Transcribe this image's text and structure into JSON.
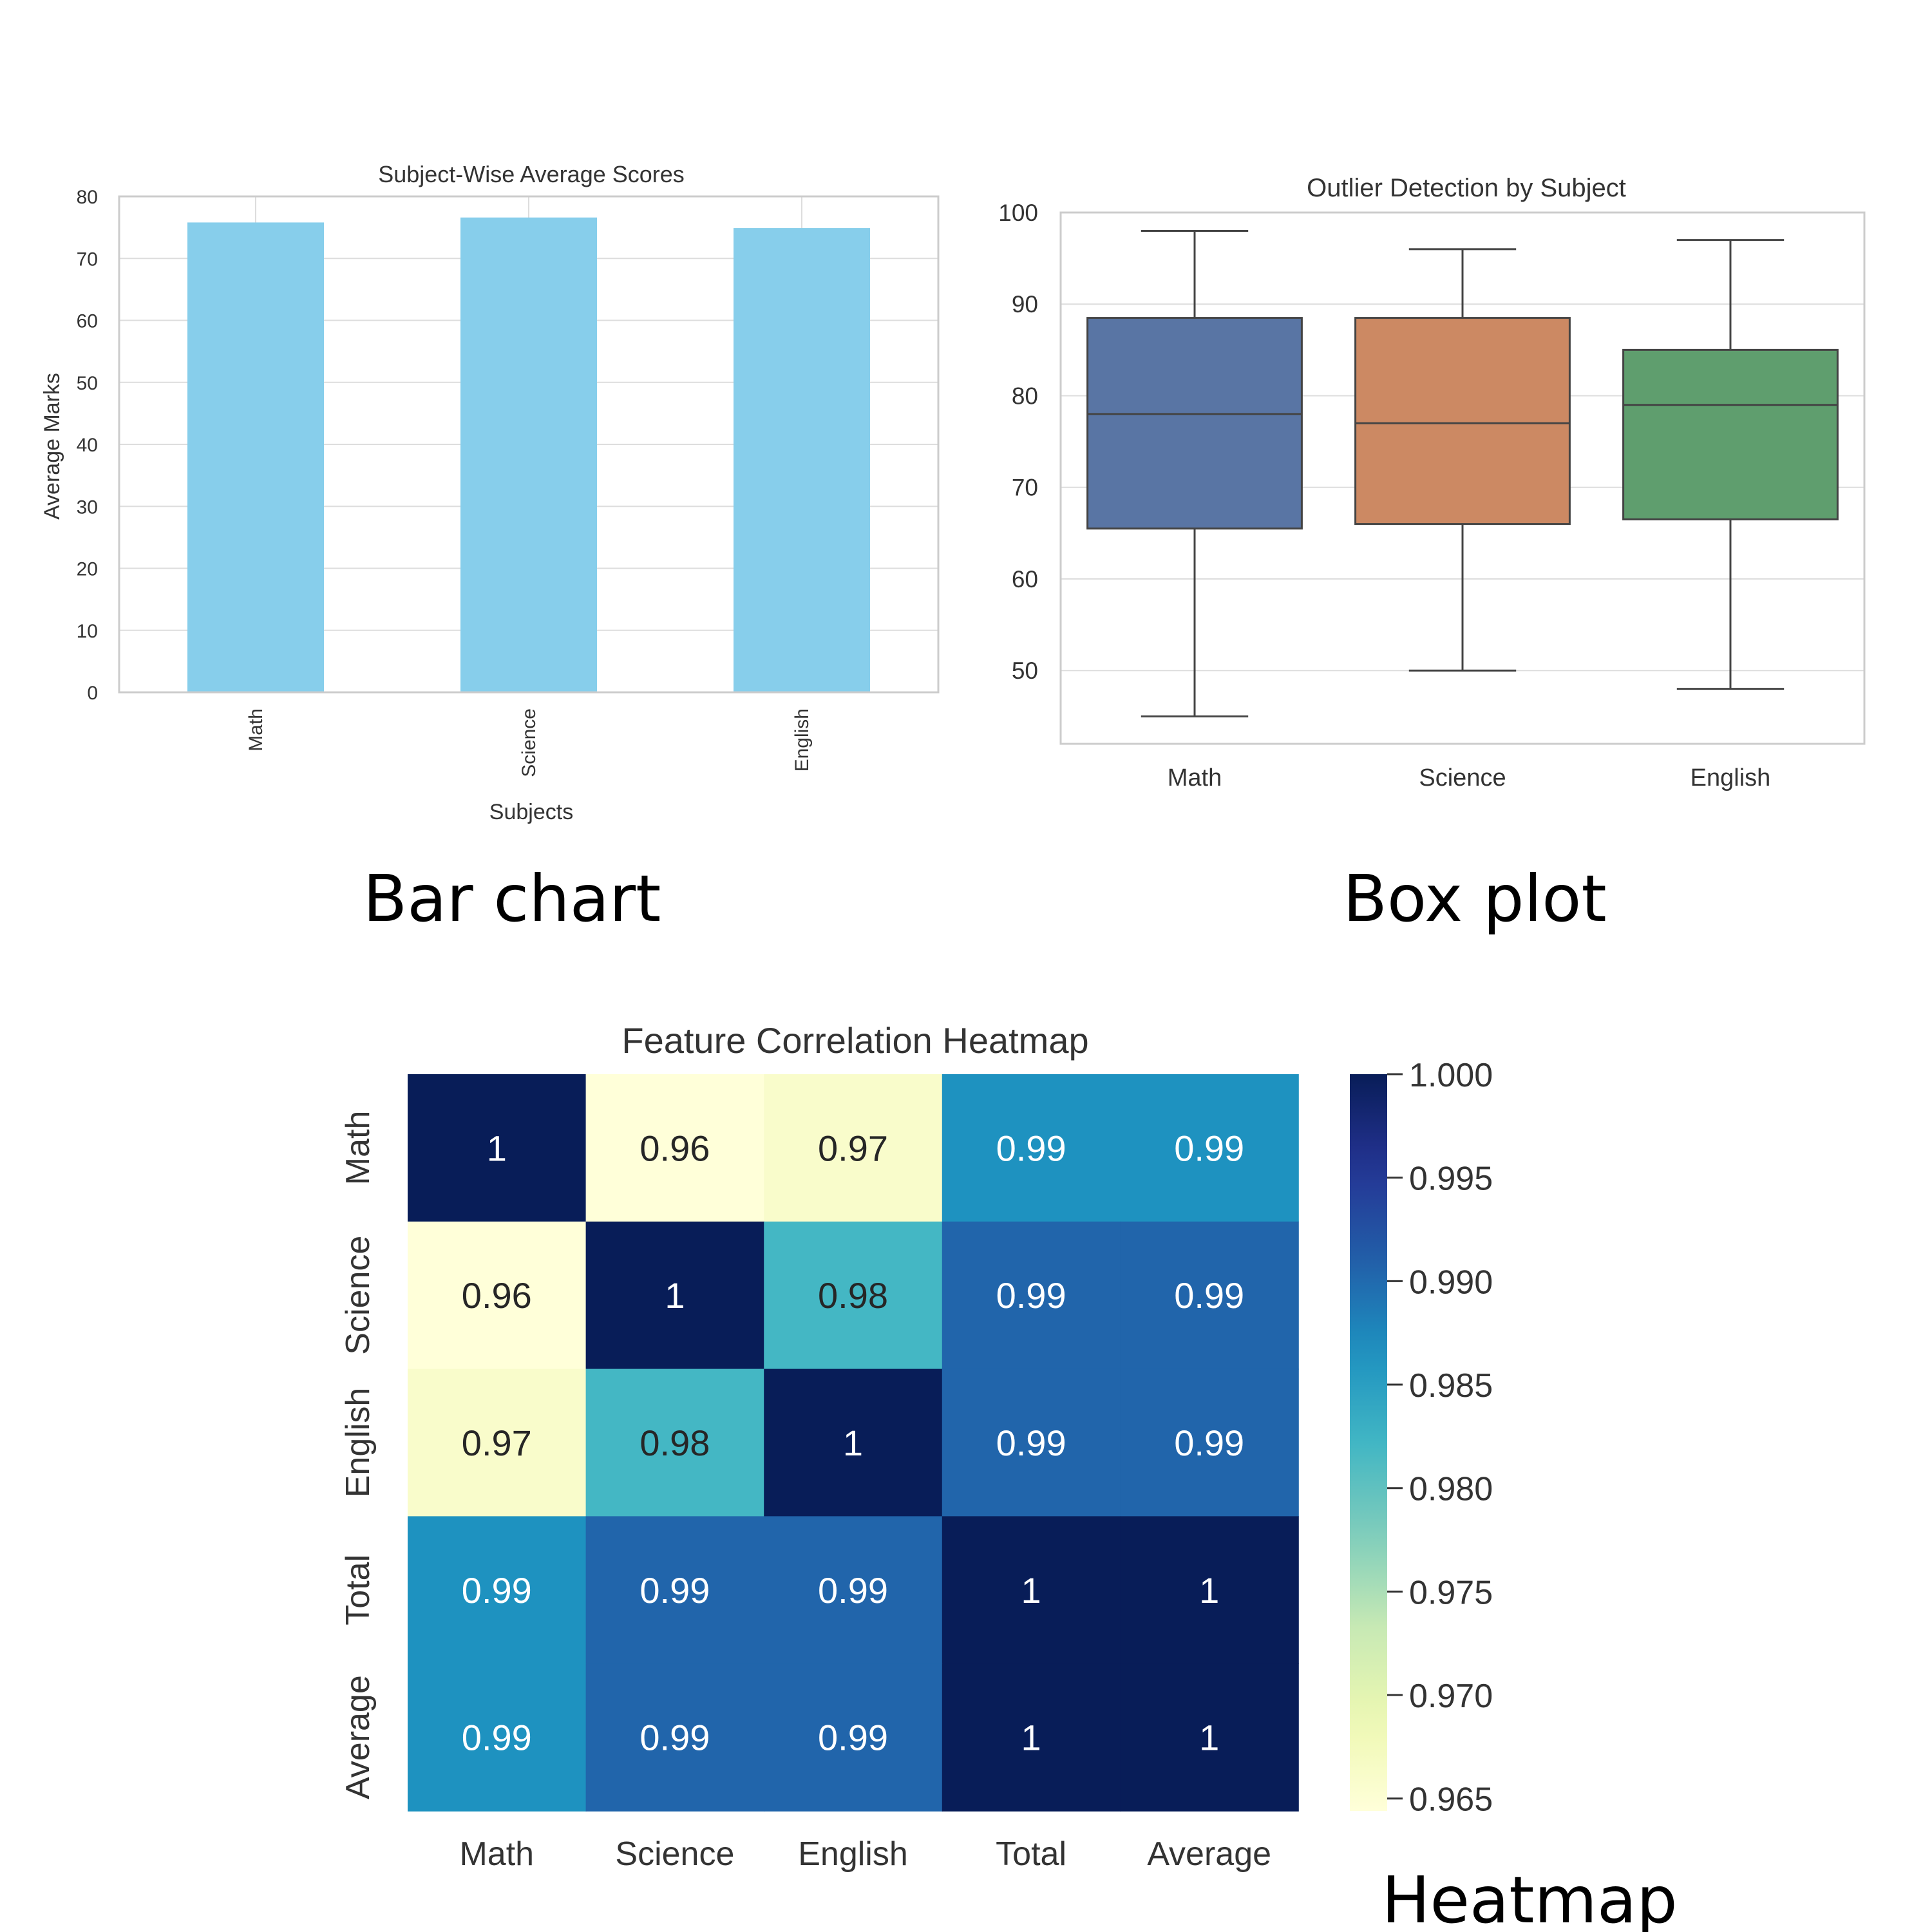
{
  "captions": {
    "bar": "Bar chart",
    "box": "Box plot",
    "heat": "Heatmap"
  },
  "chart_data": [
    {
      "type": "bar",
      "title": "Subject-Wise Average Scores",
      "xlabel": "Subjects",
      "ylabel": "Average Marks",
      "categories": [
        "Math",
        "Science",
        "English"
      ],
      "values": [
        75.8,
        76.6,
        74.9
      ],
      "ylim": [
        0,
        80
      ],
      "yticks": [
        0,
        10,
        20,
        30,
        40,
        50,
        60,
        70,
        80
      ],
      "color": "#87CEEB",
      "grid": true
    },
    {
      "type": "box",
      "title": "Outlier Detection by Subject",
      "categories": [
        "Math",
        "Science",
        "English"
      ],
      "boxes": [
        {
          "min": 45,
          "q1": 65.5,
          "median": 78,
          "q3": 88.5,
          "max": 98,
          "color": "#5975A4"
        },
        {
          "min": 50,
          "q1": 66,
          "median": 77,
          "q3": 88.5,
          "max": 96,
          "color": "#CC8963"
        },
        {
          "min": 48,
          "q1": 66.5,
          "median": 79,
          "q3": 85,
          "max": 97,
          "color": "#5F9E6E"
        }
      ],
      "ylim": [
        42,
        100
      ],
      "yticks": [
        50,
        60,
        70,
        80,
        90,
        100
      ],
      "grid": true
    },
    {
      "type": "heatmap",
      "title": "Feature Correlation Heatmap",
      "rows": [
        "Math",
        "Science",
        "English",
        "Total",
        "Average"
      ],
      "cols": [
        "Math",
        "Science",
        "English",
        "Total",
        "Average"
      ],
      "values": [
        [
          1.0,
          0.962,
          0.966,
          0.9865,
          0.9865
        ],
        [
          0.962,
          1.0,
          0.982,
          0.9905,
          0.9905
        ],
        [
          0.966,
          0.982,
          1.0,
          0.9905,
          0.9905
        ],
        [
          0.9865,
          0.9905,
          0.9905,
          1.0,
          1.0
        ],
        [
          0.9865,
          0.9905,
          0.9905,
          1.0,
          1.0
        ]
      ],
      "annotations": [
        [
          "1",
          "0.96",
          "0.97",
          "0.99",
          "0.99"
        ],
        [
          "0.96",
          "1",
          "0.98",
          "0.99",
          "0.99"
        ],
        [
          "0.97",
          "0.98",
          "1",
          "0.99",
          "0.99"
        ],
        [
          "0.99",
          "0.99",
          "0.99",
          "1",
          "1"
        ],
        [
          "0.99",
          "0.99",
          "0.99",
          "1",
          "1"
        ]
      ],
      "colormap": "YlGnBu",
      "vmin": 0.9644,
      "vmax": 1.0,
      "colorbar_ticks": [
        "1.000",
        "0.995",
        "0.990",
        "0.985",
        "0.980",
        "0.975",
        "0.970",
        "0.965"
      ]
    }
  ]
}
